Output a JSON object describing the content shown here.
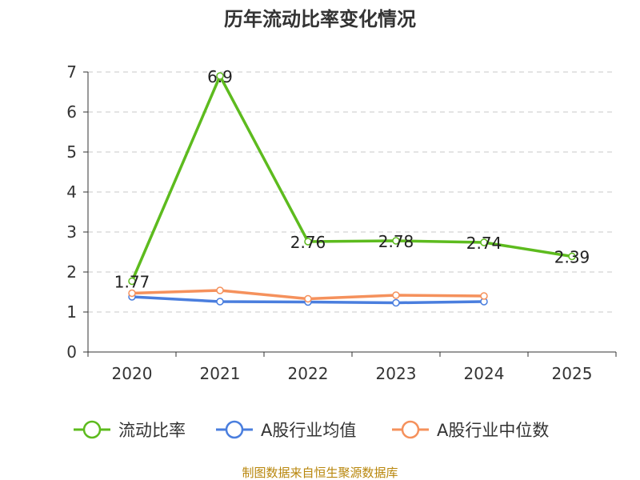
{
  "chart_data": {
    "type": "line",
    "title": "历年流动比率变化情况",
    "categories": [
      "2020",
      "2021",
      "2022",
      "2023",
      "2024",
      "2025"
    ],
    "ylim": [
      0,
      7
    ],
    "yticks": [
      0,
      1,
      2,
      3,
      4,
      5,
      6,
      7
    ],
    "grid": true,
    "legend_position": "bottom",
    "series": [
      {
        "name": "流动比率",
        "color": "#5dbb1e",
        "values": [
          1.77,
          6.9,
          2.76,
          2.78,
          2.74,
          2.39
        ],
        "labels": [
          "1.77",
          "6.9",
          "2.76",
          "2.78",
          "2.74",
          "2.39"
        ]
      },
      {
        "name": "A股行业均值",
        "color": "#4a7ede",
        "values": [
          1.38,
          1.26,
          1.25,
          1.23,
          1.26,
          null
        ]
      },
      {
        "name": "A股行业中位数",
        "color": "#f5915c",
        "values": [
          1.47,
          1.54,
          1.33,
          1.42,
          1.4,
          null
        ]
      }
    ]
  },
  "source": "制图数据来自恒生聚源数据库"
}
